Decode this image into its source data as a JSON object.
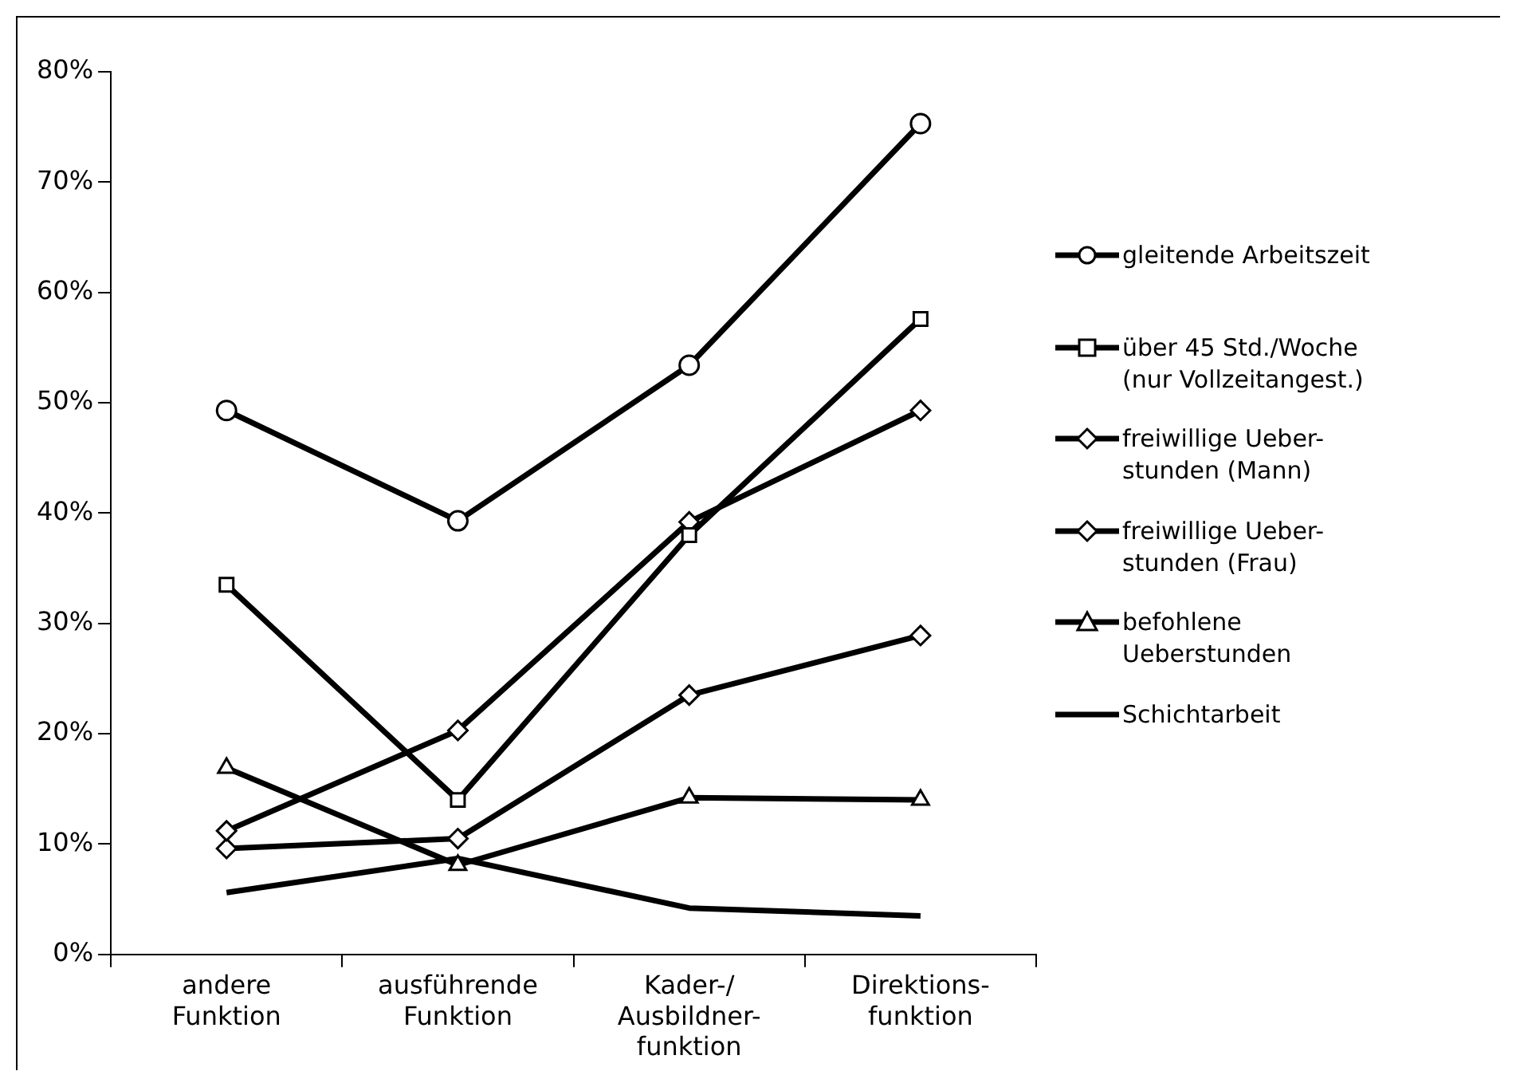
{
  "chart_data": {
    "type": "line",
    "categories": [
      "andere\nFunktion",
      "ausführende\nFunktion",
      "Kader-/\nAusbildner-\nfunktion",
      "Direktions-\nfunktion"
    ],
    "ylim": [
      0,
      80
    ],
    "yticks": [
      {
        "value": 0,
        "label": "0%"
      },
      {
        "value": 10,
        "label": "10%"
      },
      {
        "value": 20,
        "label": "20%"
      },
      {
        "value": 30,
        "label": "30%"
      },
      {
        "value": 40,
        "label": "40%"
      },
      {
        "value": 50,
        "label": "50%"
      },
      {
        "value": 60,
        "label": "60%"
      },
      {
        "value": 70,
        "label": "70%"
      },
      {
        "value": 80,
        "label": "80%"
      }
    ],
    "grid": false,
    "legend": "right",
    "line_style": "solid",
    "series": [
      {
        "name": "gleitende Arbeitszeit",
        "color": "#000000",
        "marker": "circle",
        "values": [
          49.3,
          39.3,
          53.4,
          75.3
        ]
      },
      {
        "name": "über 45 Std./Woche\n(nur Vollzeitangest.)",
        "color": "#000000",
        "marker": "square",
        "values": [
          33.5,
          14.0,
          38.0,
          57.6
        ]
      },
      {
        "name": "freiwillige Ueber-\nstunden (Mann)",
        "color": "#000000",
        "marker": "diamond",
        "values": [
          11.2,
          20.3,
          39.2,
          49.3
        ]
      },
      {
        "name": "freiwillige Ueber-\nstunden (Frau)",
        "color": "#000000",
        "marker": "diamond",
        "values": [
          9.6,
          10.5,
          23.5,
          28.9
        ]
      },
      {
        "name": "befohlene\nUeberstunden",
        "color": "#000000",
        "marker": "triangle",
        "values": [
          16.9,
          8.1,
          14.2,
          14.0
        ]
      },
      {
        "name": "Schichtarbeit",
        "color": "#000000",
        "marker": "none",
        "values": [
          5.6,
          8.7,
          4.2,
          3.5
        ]
      }
    ]
  }
}
